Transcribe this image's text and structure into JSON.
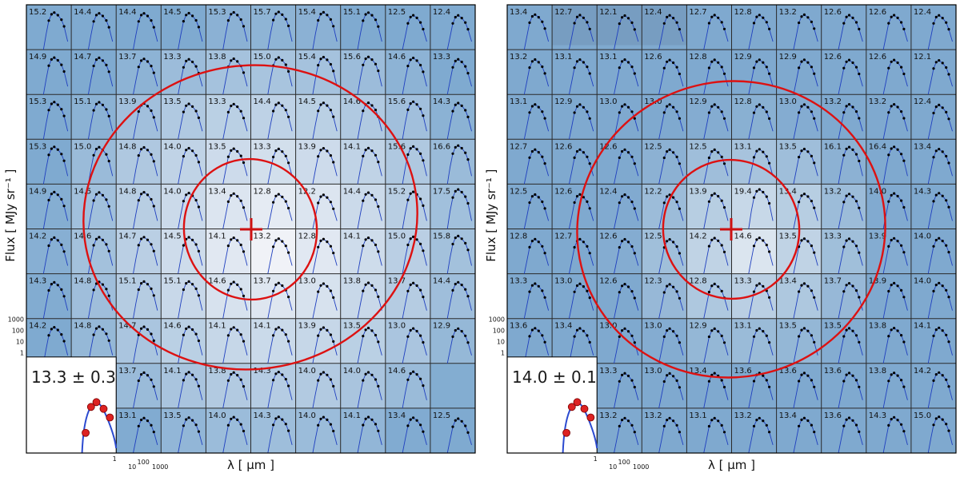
{
  "chart_data": [
    {
      "type": "heatmap",
      "panel": "left",
      "xlabel": "λ  [ μm ]",
      "ylabel": "Flux  [ MJy sr⁻¹ ]",
      "sed_y_ticks": [
        "1000",
        "100",
        "10",
        "1"
      ],
      "sed_x_ticks": [
        "1",
        "10",
        "100",
        "1000"
      ],
      "inset_label": "13.3 ± 0.3",
      "grid_values": [
        [
          15.2,
          14.4,
          14.4,
          14.5,
          15.3,
          15.7,
          15.4,
          15.1,
          12.5,
          12.4
        ],
        [
          14.9,
          14.7,
          13.7,
          13.3,
          13.8,
          15.0,
          15.4,
          15.6,
          14.6,
          13.3
        ],
        [
          15.3,
          15.1,
          13.9,
          13.5,
          13.3,
          14.4,
          14.5,
          14.6,
          15.6,
          14.3
        ],
        [
          15.3,
          15.0,
          14.8,
          14.0,
          13.5,
          13.3,
          13.9,
          14.1,
          15.6,
          16.6
        ],
        [
          14.9,
          14.5,
          14.8,
          14.0,
          13.4,
          12.8,
          12.2,
          14.4,
          15.2,
          17.5
        ],
        [
          14.2,
          14.6,
          14.7,
          14.5,
          14.1,
          13.2,
          12.8,
          14.1,
          15.0,
          15.8
        ],
        [
          14.3,
          14.8,
          15.1,
          15.1,
          14.6,
          13.7,
          13.0,
          13.8,
          13.7,
          14.4
        ],
        [
          14.2,
          14.8,
          14.7,
          14.6,
          14.1,
          14.1,
          13.9,
          13.5,
          13.0,
          12.9
        ],
        [
          null,
          null,
          13.7,
          14.1,
          13.8,
          14.3,
          14.0,
          14.0,
          14.6,
          null
        ],
        [
          null,
          null,
          13.1,
          13.5,
          14.0,
          14.3,
          14.0,
          14.1,
          13.4,
          12.5
        ]
      ],
      "peak_cell": [
        5,
        5
      ]
    },
    {
      "type": "heatmap",
      "panel": "right",
      "xlabel": "λ  [ μm ]",
      "ylabel": "Flux  [ MJy sr⁻¹ ]",
      "sed_y_ticks": [
        "1000",
        "100",
        "10",
        "1"
      ],
      "sed_x_ticks": [
        "1",
        "10",
        "100",
        "1000"
      ],
      "inset_label": "14.0 ± 0.1",
      "grid_values": [
        [
          13.4,
          12.7,
          12.1,
          12.4,
          12.7,
          12.8,
          13.2,
          12.6,
          12.6,
          12.4
        ],
        [
          13.2,
          13.1,
          13.1,
          12.6,
          12.8,
          12.9,
          12.9,
          12.6,
          12.6,
          12.1
        ],
        [
          13.1,
          12.9,
          13.0,
          13.0,
          12.9,
          12.8,
          13.0,
          13.2,
          13.2,
          12.4
        ],
        [
          12.7,
          12.6,
          12.6,
          12.5,
          12.5,
          13.1,
          13.5,
          16.1,
          16.4,
          13.4
        ],
        [
          12.5,
          12.6,
          12.4,
          12.2,
          13.9,
          19.4,
          13.4,
          13.2,
          14.0,
          14.3
        ],
        [
          12.8,
          12.7,
          12.6,
          12.5,
          14.2,
          14.6,
          13.5,
          13.3,
          13.9,
          14.0
        ],
        [
          13.3,
          13.0,
          12.6,
          12.3,
          12.8,
          13.3,
          13.4,
          13.7,
          13.9,
          14.0
        ],
        [
          13.6,
          13.4,
          13.0,
          13.0,
          12.9,
          13.1,
          13.5,
          13.5,
          13.8,
          14.1
        ],
        [
          null,
          null,
          13.3,
          13.0,
          13.4,
          13.6,
          13.6,
          13.6,
          13.8,
          14.2
        ],
        [
          null,
          null,
          13.2,
          13.2,
          13.1,
          13.2,
          13.4,
          13.6,
          14.3,
          15.0
        ]
      ],
      "peak_cell": [
        5,
        5
      ]
    }
  ]
}
